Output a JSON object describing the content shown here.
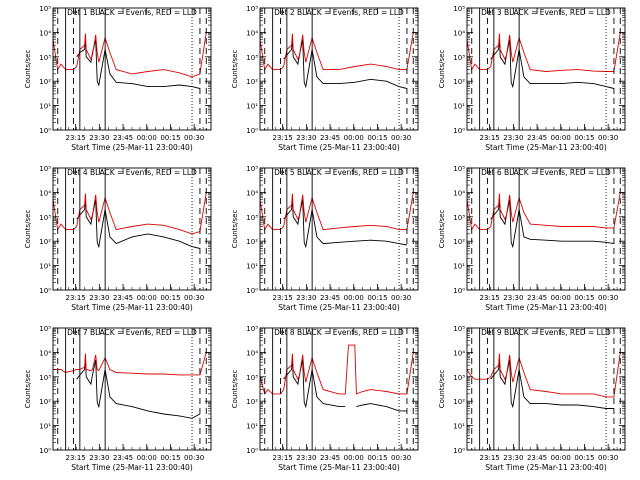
{
  "figure": {
    "ylabel": "Counts/sec",
    "xlabel": "Start Time (25-Mar-11 23:00:40)",
    "x_tick_labels": [
      "23:15",
      "23:30",
      "23:45",
      "00:00",
      "00:15",
      "00:30"
    ],
    "y_tick_labels": [
      "10⁰",
      "10¹",
      "10²",
      "10³",
      "10⁴",
      "10⁵"
    ],
    "colors": {
      "events": "#000000",
      "lld": "#e00000",
      "axes": "#000000"
    }
  },
  "chart_data": [
    {
      "type": "line",
      "title": "Det 1 BLACK = Events, RED = LLD",
      "xlabel": "Start Time (25-Mar-11 23:00:40)",
      "ylabel": "Counts/sec",
      "y_scale": "log",
      "ylim": [
        1,
        100000
      ],
      "xlim_minutes": [
        0,
        100
      ],
      "x": [
        0,
        3,
        5,
        8,
        13,
        15,
        17,
        20,
        20.5,
        21,
        24,
        25,
        27,
        28,
        29,
        33,
        36,
        40,
        50,
        60,
        70,
        80,
        88,
        93,
        97,
        100
      ],
      "series": [
        {
          "name": "Events",
          "color": "#000000",
          "values": [
            null,
            null,
            null,
            null,
            null,
            1000,
            1500,
            2000,
            6000,
            1000,
            600,
            1500,
            5000,
            100,
            70,
            2000,
            200,
            90,
            80,
            60,
            60,
            70,
            60,
            50,
            null,
            null
          ]
        },
        {
          "name": "LLD",
          "color": "#e00000",
          "values": [
            5000,
            300,
            500,
            300,
            300,
            400,
            2000,
            3000,
            9000,
            2000,
            800,
            1200,
            8000,
            1500,
            600,
            6000,
            1500,
            300,
            200,
            250,
            300,
            220,
            150,
            200,
            10000,
            10000
          ]
        }
      ]
    },
    {
      "type": "line",
      "title": "Det 2 BLACK = Events, RED = LLD",
      "xlabel": "Start Time (25-Mar-11 23:00:40)",
      "ylabel": "Counts/sec",
      "y_scale": "log",
      "ylim": [
        1,
        100000
      ],
      "xlim_minutes": [
        0,
        100
      ],
      "x": [
        0,
        3,
        5,
        8,
        13,
        15,
        17,
        20,
        20.5,
        21,
        24,
        25,
        27,
        28,
        29,
        33,
        36,
        40,
        50,
        60,
        70,
        80,
        88,
        93,
        97,
        100
      ],
      "series": [
        {
          "name": "Events",
          "color": "#000000",
          "values": [
            null,
            null,
            null,
            null,
            null,
            800,
            1200,
            2000,
            6000,
            1000,
            500,
            1200,
            5000,
            90,
            60,
            2000,
            150,
            80,
            80,
            90,
            120,
            100,
            60,
            50,
            null,
            null
          ]
        },
        {
          "name": "LLD",
          "color": "#e00000",
          "values": [
            5000,
            300,
            500,
            300,
            300,
            400,
            2000,
            3000,
            9000,
            2000,
            800,
            1200,
            8000,
            1500,
            600,
            6000,
            1500,
            300,
            300,
            400,
            500,
            400,
            300,
            300,
            10000,
            10000
          ]
        }
      ]
    },
    {
      "type": "line",
      "title": "Det 3 BLACK = Events, RED = LLD",
      "xlabel": "Start Time (25-Mar-11 23:00:40)",
      "ylabel": "Counts/sec",
      "y_scale": "log",
      "ylim": [
        1,
        100000
      ],
      "xlim_minutes": [
        0,
        100
      ],
      "x": [
        0,
        3,
        5,
        8,
        13,
        15,
        17,
        20,
        20.5,
        21,
        24,
        25,
        27,
        28,
        29,
        33,
        36,
        40,
        50,
        60,
        70,
        80,
        88,
        93,
        97,
        100
      ],
      "series": [
        {
          "name": "Events",
          "color": "#000000",
          "values": [
            null,
            null,
            null,
            null,
            null,
            800,
            1200,
            2000,
            6000,
            1000,
            500,
            1200,
            5000,
            90,
            60,
            2000,
            150,
            80,
            80,
            80,
            90,
            80,
            60,
            50,
            null,
            null
          ]
        },
        {
          "name": "LLD",
          "color": "#e00000",
          "values": [
            5000,
            300,
            500,
            300,
            300,
            400,
            2000,
            3000,
            9000,
            2000,
            800,
            1200,
            8000,
            1500,
            600,
            6000,
            1500,
            300,
            250,
            280,
            300,
            260,
            250,
            250,
            10000,
            10000
          ]
        }
      ]
    },
    {
      "type": "line",
      "title": "Det 4 BLACK = Events, RED = LLD",
      "xlabel": "Start Time (25-Mar-11 23:00:40)",
      "ylabel": "Counts/sec",
      "y_scale": "log",
      "ylim": [
        1,
        100000
      ],
      "xlim_minutes": [
        0,
        100
      ],
      "x": [
        0,
        3,
        5,
        8,
        13,
        15,
        17,
        20,
        20.5,
        21,
        24,
        25,
        27,
        28,
        29,
        33,
        36,
        40,
        50,
        60,
        70,
        80,
        88,
        93,
        97,
        100
      ],
      "series": [
        {
          "name": "Events",
          "color": "#000000",
          "values": [
            null,
            null,
            null,
            null,
            null,
            800,
            1200,
            2000,
            6000,
            1000,
            500,
            1200,
            5000,
            90,
            60,
            2000,
            150,
            80,
            150,
            200,
            150,
            100,
            60,
            50,
            null,
            null
          ]
        },
        {
          "name": "LLD",
          "color": "#e00000",
          "values": [
            5000,
            300,
            500,
            300,
            300,
            400,
            2000,
            3000,
            9000,
            2000,
            800,
            1200,
            8000,
            1500,
            600,
            6000,
            1500,
            300,
            400,
            500,
            450,
            300,
            200,
            250,
            10000,
            10000
          ]
        }
      ]
    },
    {
      "type": "line",
      "title": "Det 5 BLACK = Events, RED = LLD",
      "xlabel": "Start Time (25-Mar-11 23:00:40)",
      "ylabel": "Counts/sec",
      "y_scale": "log",
      "ylim": [
        1,
        100000
      ],
      "xlim_minutes": [
        0,
        100
      ],
      "x": [
        0,
        3,
        5,
        8,
        13,
        15,
        17,
        20,
        20.5,
        21,
        24,
        25,
        27,
        28,
        29,
        33,
        36,
        40,
        50,
        60,
        70,
        80,
        88,
        93,
        97,
        100
      ],
      "series": [
        {
          "name": "Events",
          "color": "#000000",
          "values": [
            null,
            null,
            null,
            null,
            null,
            800,
            1200,
            2000,
            6000,
            1000,
            500,
            1200,
            5000,
            90,
            60,
            2000,
            150,
            80,
            90,
            100,
            110,
            100,
            80,
            70,
            null,
            null
          ]
        },
        {
          "name": "LLD",
          "color": "#e00000",
          "values": [
            5000,
            300,
            500,
            300,
            300,
            400,
            2000,
            3000,
            9000,
            2000,
            800,
            1200,
            8000,
            1500,
            600,
            6000,
            1500,
            300,
            350,
            400,
            450,
            400,
            300,
            300,
            10000,
            10000
          ]
        }
      ]
    },
    {
      "type": "line",
      "title": "Det 6 BLACK = Events, RED = LLD",
      "xlabel": "Start Time (25-Mar-11 23:00:40)",
      "ylabel": "Counts/sec",
      "y_scale": "log",
      "ylim": [
        1,
        100000
      ],
      "xlim_minutes": [
        0,
        100
      ],
      "x": [
        0,
        3,
        5,
        8,
        13,
        15,
        17,
        20,
        20.5,
        21,
        24,
        25,
        27,
        28,
        29,
        33,
        36,
        40,
        50,
        60,
        70,
        80,
        88,
        93,
        97,
        100
      ],
      "series": [
        {
          "name": "Events",
          "color": "#000000",
          "values": [
            null,
            null,
            null,
            null,
            null,
            800,
            1200,
            2000,
            6000,
            1000,
            500,
            1200,
            5000,
            90,
            60,
            2000,
            150,
            120,
            110,
            100,
            100,
            100,
            90,
            80,
            null,
            null
          ]
        },
        {
          "name": "LLD",
          "color": "#e00000",
          "values": [
            5000,
            300,
            500,
            300,
            300,
            400,
            2000,
            3000,
            9000,
            2000,
            800,
            1200,
            8000,
            1500,
            600,
            6000,
            1500,
            500,
            450,
            400,
            400,
            400,
            350,
            350,
            10000,
            10000
          ]
        }
      ]
    },
    {
      "type": "line",
      "title": "Det 7 BLACK = Events, RED = LLD",
      "xlabel": "Start Time (25-Mar-11 23:00:40)",
      "ylabel": "Counts/sec",
      "y_scale": "log",
      "ylim": [
        1,
        100000
      ],
      "xlim_minutes": [
        0,
        100
      ],
      "x": [
        0,
        3,
        5,
        8,
        13,
        15,
        17,
        20,
        20.5,
        21,
        24,
        25,
        27,
        28,
        29,
        33,
        36,
        40,
        50,
        60,
        70,
        80,
        88,
        93,
        97,
        100
      ],
      "series": [
        {
          "name": "Events",
          "color": "#000000",
          "values": [
            null,
            null,
            null,
            null,
            null,
            800,
            1200,
            2000,
            6000,
            1000,
            500,
            1200,
            5000,
            90,
            60,
            2000,
            150,
            80,
            60,
            40,
            30,
            25,
            20,
            30,
            null,
            null
          ]
        },
        {
          "name": "LLD",
          "color": "#e00000",
          "values": [
            2000,
            2000,
            2000,
            1500,
            1800,
            2000,
            2000,
            2500,
            9000,
            2000,
            1800,
            2000,
            8000,
            2000,
            1800,
            6000,
            2000,
            1500,
            1400,
            1300,
            1300,
            1200,
            1200,
            1200,
            10000,
            10000
          ]
        }
      ]
    },
    {
      "type": "line",
      "title": "Det 8 BLACK = Events, RED = LLD",
      "xlabel": "Start Time (25-Mar-11 23:00:40)",
      "ylabel": "Counts/sec",
      "y_scale": "log",
      "ylim": [
        1,
        100000
      ],
      "xlim_minutes": [
        0,
        100
      ],
      "x": [
        0,
        3,
        5,
        8,
        13,
        15,
        17,
        20,
        20.5,
        21,
        24,
        25,
        27,
        28,
        29,
        33,
        36,
        40,
        50,
        54,
        56,
        60,
        61,
        65,
        70,
        80,
        88,
        93,
        97,
        100
      ],
      "series": [
        {
          "name": "Events",
          "color": "#000000",
          "values": [
            null,
            null,
            null,
            null,
            null,
            800,
            1200,
            2000,
            6000,
            1000,
            500,
            1200,
            5000,
            90,
            60,
            2000,
            150,
            80,
            60,
            60,
            null,
            null,
            60,
            70,
            80,
            60,
            40,
            40,
            null,
            null
          ]
        },
        {
          "name": "LLD",
          "color": "#e00000",
          "values": [
            1000,
            200,
            300,
            200,
            200,
            300,
            2000,
            3000,
            9000,
            2000,
            800,
            1200,
            8000,
            1500,
            600,
            6000,
            1500,
            300,
            200,
            200,
            20000,
            20000,
            200,
            250,
            300,
            250,
            200,
            200,
            10000,
            10000
          ]
        }
      ]
    },
    {
      "type": "line",
      "title": "Det 9 BLACK = Events, RED = LLD",
      "xlabel": "Start Time (25-Mar-11 23:00:40)",
      "ylabel": "Counts/sec",
      "y_scale": "log",
      "ylim": [
        1,
        100000
      ],
      "xlim_minutes": [
        0,
        100
      ],
      "x": [
        0,
        3,
        5,
        8,
        13,
        15,
        17,
        20,
        20.5,
        21,
        24,
        25,
        27,
        28,
        29,
        33,
        36,
        40,
        50,
        60,
        70,
        80,
        88,
        93,
        97,
        100
      ],
      "series": [
        {
          "name": "Events",
          "color": "#000000",
          "values": [
            null,
            null,
            null,
            null,
            null,
            800,
            1200,
            2000,
            6000,
            1000,
            500,
            1200,
            5000,
            90,
            60,
            2000,
            150,
            80,
            80,
            70,
            70,
            60,
            50,
            50,
            null,
            null
          ]
        },
        {
          "name": "LLD",
          "color": "#e00000",
          "values": [
            2000,
            1000,
            800,
            800,
            800,
            1000,
            2000,
            3000,
            9000,
            2000,
            800,
            1200,
            8000,
            1500,
            600,
            6000,
            1500,
            300,
            250,
            200,
            200,
            200,
            150,
            150,
            10000,
            10000
          ]
        }
      ]
    }
  ]
}
